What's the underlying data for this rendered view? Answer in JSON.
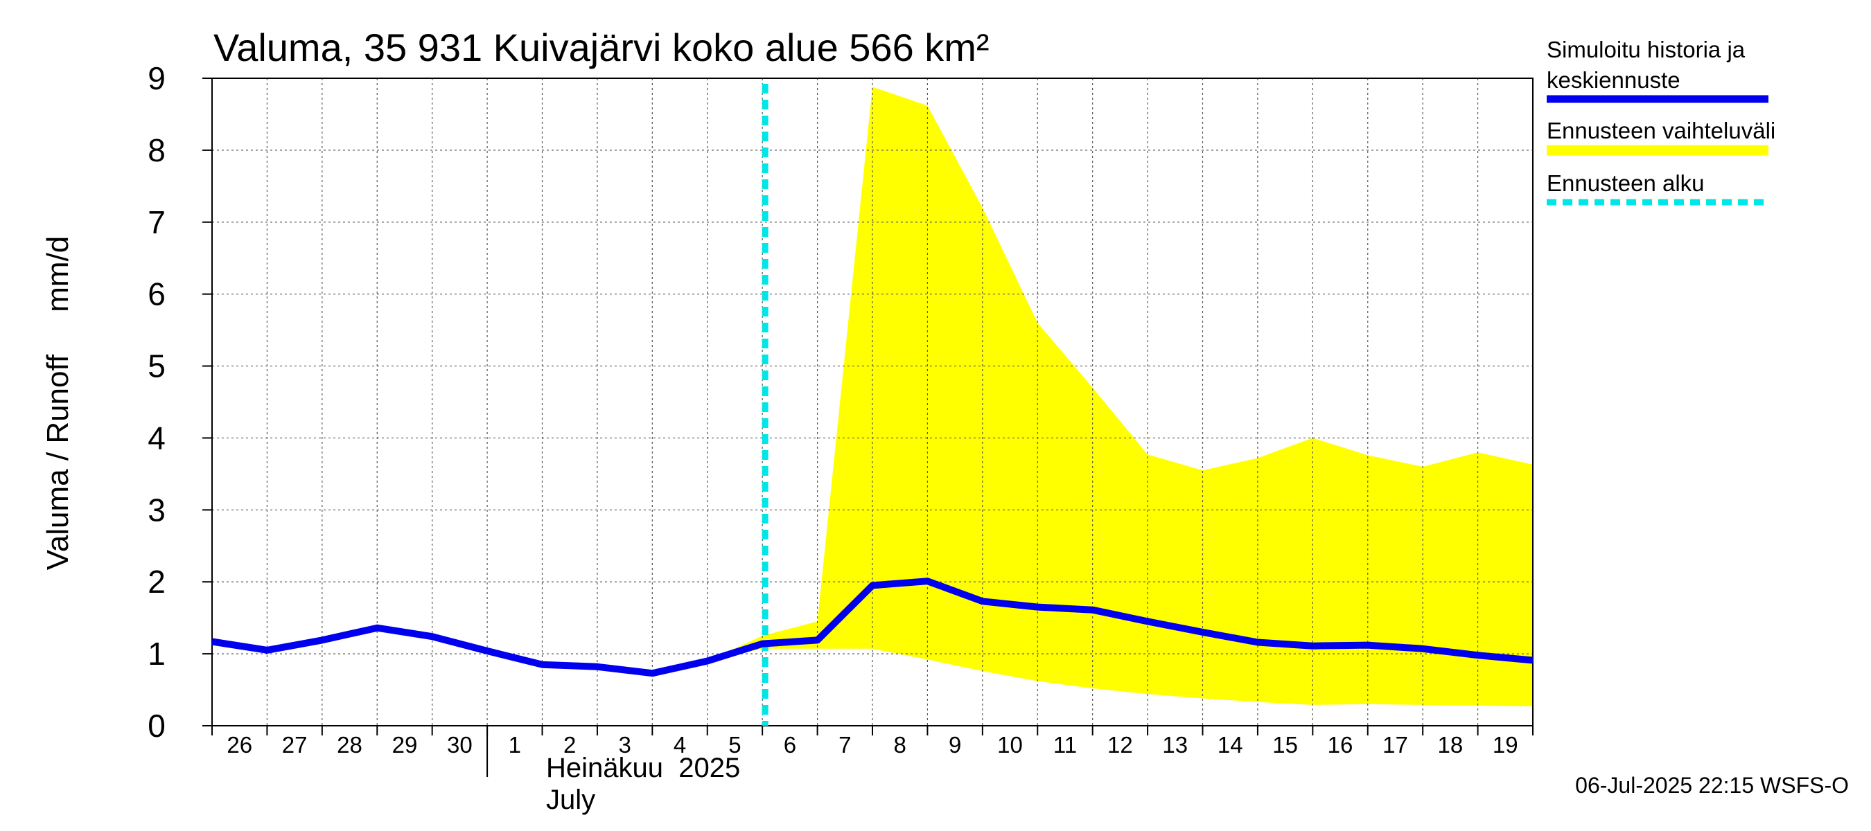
{
  "chart_data": {
    "type": "line",
    "title": "Valuma, 35 931 Kuivajärvi koko alue 566 km²",
    "ylabel": "Valuma / Runoff     mm/d",
    "ylim": [
      0,
      9
    ],
    "yticks": [
      "0",
      "1",
      "2",
      "3",
      "4",
      "5",
      "6",
      "7",
      "8",
      "9"
    ],
    "xlim": [
      "2025-06-26",
      "2025-07-20"
    ],
    "x_tick_labels": [
      "26",
      "27",
      "28",
      "29",
      "30",
      "1",
      "2",
      "3",
      "4",
      "5",
      "6",
      "7",
      "8",
      "9",
      "10",
      "11",
      "12",
      "13",
      "14",
      "15",
      "16",
      "17",
      "18",
      "19"
    ],
    "month_label_fi": "Heinäkuu  2025",
    "month_label_en": "July",
    "grid": true,
    "legend_position": "right",
    "forecast_start": "2025-07-06",
    "series": [
      {
        "name": "Simuloitu historia ja keskiennuste",
        "color": "#0000ee",
        "x": [
          "2025-06-26",
          "2025-06-27",
          "2025-06-28",
          "2025-06-29",
          "2025-06-30",
          "2025-07-01",
          "2025-07-02",
          "2025-07-03",
          "2025-07-04",
          "2025-07-05",
          "2025-07-06",
          "2025-07-07",
          "2025-07-08",
          "2025-07-09",
          "2025-07-10",
          "2025-07-11",
          "2025-07-12",
          "2025-07-13",
          "2025-07-14",
          "2025-07-15",
          "2025-07-16",
          "2025-07-17",
          "2025-07-18",
          "2025-07-19",
          "2025-07-20"
        ],
        "values": [
          1.17,
          1.05,
          1.19,
          1.36,
          1.24,
          1.04,
          0.85,
          0.82,
          0.73,
          0.9,
          1.14,
          1.19,
          1.95,
          2.01,
          1.73,
          1.65,
          1.61,
          1.45,
          1.3,
          1.16,
          1.11,
          1.12,
          1.07,
          0.98,
          0.91
        ]
      },
      {
        "name": "Ennusteen vaihteluväli",
        "color": "#ffff00",
        "x": [
          "2025-07-05",
          "2025-07-06",
          "2025-07-07",
          "2025-07-08",
          "2025-07-09",
          "2025-07-10",
          "2025-07-11",
          "2025-07-12",
          "2025-07-13",
          "2025-07-14",
          "2025-07-15",
          "2025-07-16",
          "2025-07-17",
          "2025-07-18",
          "2025-07-19",
          "2025-07-20"
        ],
        "upper": [
          0.9,
          1.25,
          1.45,
          8.88,
          8.62,
          7.2,
          5.6,
          4.7,
          3.77,
          3.55,
          3.72,
          4.0,
          3.76,
          3.6,
          3.8,
          3.63
        ],
        "lower": [
          0.9,
          1.07,
          1.07,
          1.07,
          0.92,
          0.76,
          0.62,
          0.52,
          0.44,
          0.38,
          0.33,
          0.29,
          0.3,
          0.29,
          0.28,
          0.27
        ]
      },
      {
        "name": "Ennusteen alku",
        "color": "#00e5e5"
      }
    ]
  },
  "footer": "06-Jul-2025 22:15 WSFS-O"
}
